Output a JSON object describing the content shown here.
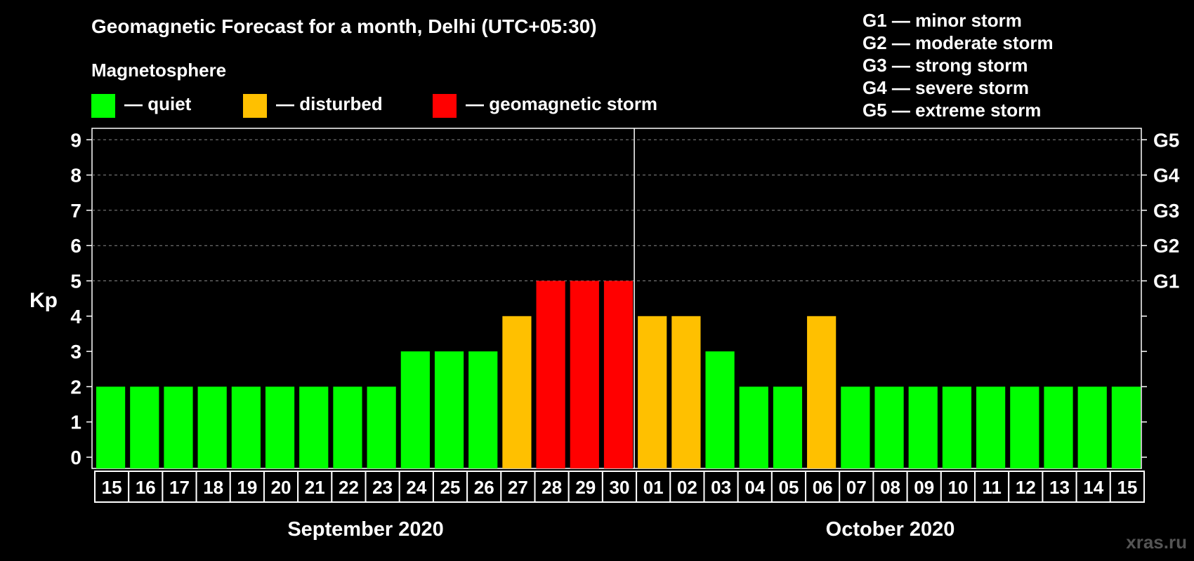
{
  "chart_data": {
    "type": "bar",
    "title": "Geomagnetic Forecast for a month, Delhi (UTC+05:30)",
    "legend_title": "Magnetosphere",
    "legend": [
      {
        "label": "— quiet",
        "color": "#00ff00"
      },
      {
        "label": "— disturbed",
        "color": "#ffc000"
      },
      {
        "label": "— geomagnetic storm",
        "color": "#ff0000"
      }
    ],
    "storm_levels": [
      "G1 — minor storm",
      "G2 — moderate storm",
      "G3 — strong storm",
      "G4 — severe storm",
      "G5 — extreme storm"
    ],
    "ylabel": "Kp",
    "ylim": [
      0,
      9
    ],
    "yticks": [
      "0",
      "1",
      "2",
      "3",
      "4",
      "5",
      "6",
      "7",
      "8",
      "9"
    ],
    "right_axis_labels": [
      {
        "kp": 5,
        "label": "G1"
      },
      {
        "kp": 6,
        "label": "G2"
      },
      {
        "kp": 7,
        "label": "G3"
      },
      {
        "kp": 8,
        "label": "G4"
      },
      {
        "kp": 9,
        "label": "G5"
      }
    ],
    "grid": "dashed horizontal at Kp 5-9",
    "categories": [
      "15",
      "16",
      "17",
      "18",
      "19",
      "20",
      "21",
      "22",
      "23",
      "24",
      "25",
      "26",
      "27",
      "28",
      "29",
      "30",
      "01",
      "02",
      "03",
      "04",
      "05",
      "06",
      "07",
      "08",
      "09",
      "10",
      "11",
      "12",
      "13",
      "14",
      "15"
    ],
    "values": [
      2,
      2,
      2,
      2,
      2,
      2,
      2,
      2,
      2,
      3,
      3,
      3,
      4,
      5,
      5,
      5,
      4,
      4,
      3,
      2,
      2,
      4,
      2,
      2,
      2,
      2,
      2,
      2,
      2,
      2,
      2
    ],
    "colors": {
      "quiet": "#00ff00",
      "disturbed": "#ffc000",
      "storm": "#ff0000"
    },
    "months": [
      {
        "label": "September 2020",
        "first_index": 0,
        "last_index": 15
      },
      {
        "label": "October 2020",
        "first_index": 16,
        "last_index": 30
      }
    ],
    "watermark": "xras.ru"
  }
}
